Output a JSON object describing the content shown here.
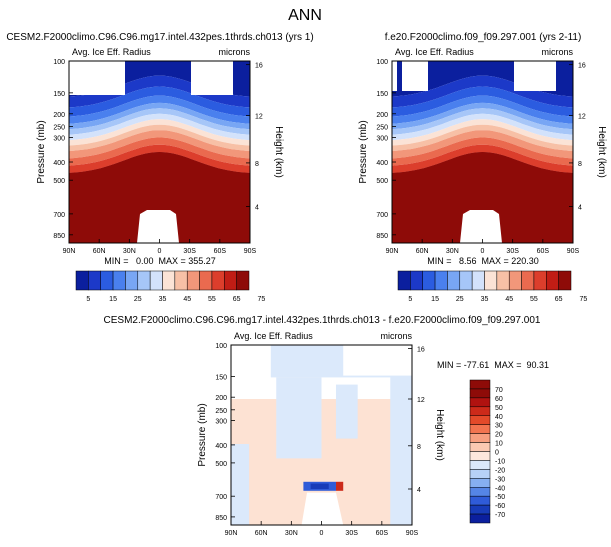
{
  "page_title": "ANN",
  "chart_data": [
    {
      "type": "heatmap",
      "title": "CESM2.F2000climo.C96.C96.mg17.intel.432pes.1thrds.ch013 (yrs 1)",
      "subtitle_left": "Avg. Ice Eff. Radius",
      "subtitle_right": "microns",
      "ylabel": "Pressure (mb)",
      "y2label": "Height (km)",
      "x_ticks": [
        "90N",
        "60N",
        "30N",
        "0",
        "30S",
        "60S",
        "90S"
      ],
      "y_ticks": [
        "100",
        "150",
        "200",
        "250",
        "300",
        "400",
        "500",
        "700",
        "850"
      ],
      "y2_ticks": [
        "16",
        "12",
        "8",
        "4"
      ],
      "min_max_text": "MIN =   0.00  MAX = 355.27",
      "min": 0.0,
      "max": 355.27,
      "colorbar_ticks": [
        "5",
        "15",
        "25",
        "35",
        "45",
        "55",
        "65",
        "75"
      ]
    },
    {
      "type": "heatmap",
      "title": "f.e20.F2000climo.f09_f09.297.001 (yrs 2-11)",
      "subtitle_left": "Avg. Ice Eff. Radius",
      "subtitle_right": "microns",
      "ylabel": "Pressure (mb)",
      "y2label": "Height (km)",
      "x_ticks": [
        "90N",
        "60N",
        "30N",
        "0",
        "30S",
        "60S",
        "90S"
      ],
      "y_ticks": [
        "100",
        "150",
        "200",
        "250",
        "300",
        "400",
        "500",
        "700",
        "850"
      ],
      "y2_ticks": [
        "16",
        "12",
        "8",
        "4"
      ],
      "min_max_text": "MIN =   8.56  MAX = 220.30",
      "min": 8.56,
      "max": 220.3,
      "colorbar_ticks": [
        "5",
        "15",
        "25",
        "35",
        "45",
        "55",
        "65",
        "75"
      ]
    },
    {
      "type": "heatmap",
      "title": "CESM2.F2000climo.C96.C96.mg17.intel.432pes.1thrds.ch013 - f.e20.F2000climo.f09_f09.297.001",
      "subtitle_left": "Avg. Ice Eff. Radius",
      "subtitle_right": "microns",
      "ylabel": "Pressure (mb)",
      "y2label": "Height (km)",
      "x_ticks": [
        "90N",
        "60N",
        "30N",
        "0",
        "30S",
        "60S",
        "90S"
      ],
      "y_ticks": [
        "100",
        "150",
        "200",
        "250",
        "300",
        "400",
        "500",
        "700",
        "850"
      ],
      "y2_ticks": [
        "16",
        "12",
        "8",
        "4"
      ],
      "min_max_text": "MIN = -77.61  MAX =  90.31",
      "min": -77.61,
      "max": 90.31,
      "colorbar_ticks": [
        "70",
        "60",
        "50",
        "40",
        "30",
        "20",
        "10",
        "0",
        "-10",
        "-20",
        "-30",
        "-40",
        "-50",
        "-60",
        "-70"
      ]
    }
  ],
  "colors": {
    "seq": [
      "#0b1f9e",
      "#1c39c8",
      "#2b5ce0",
      "#4a80ee",
      "#78a6f4",
      "#a6c6f8",
      "#d3e2fb",
      "#fbe3d6",
      "#f7c0a6",
      "#f2977a",
      "#ea6a4f",
      "#dc3e2c",
      "#c11d15",
      "#8e0b08"
    ],
    "div": [
      "#8e0b08",
      "#b01210",
      "#cc2a1a",
      "#e34a2a",
      "#f27450",
      "#f79f80",
      "#fbc9b2",
      "#fde7dc",
      "#dbe9fb",
      "#b6d1f7",
      "#86aff1",
      "#5585e6",
      "#2f5bd8",
      "#173bb8",
      "#0b1f9e"
    ]
  }
}
